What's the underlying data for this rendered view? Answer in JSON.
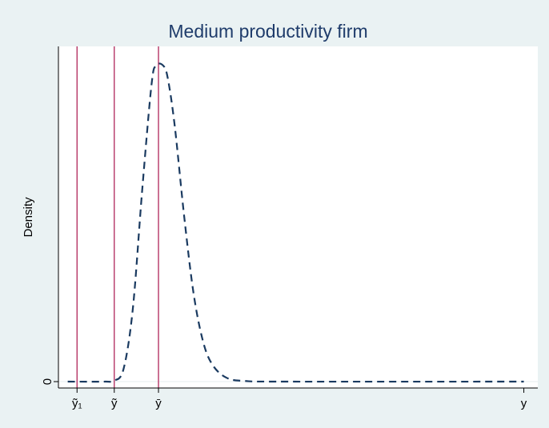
{
  "chart_data": {
    "type": "line",
    "title": "Medium productivity firm",
    "xlabel": "",
    "ylabel": "Density",
    "x_tick_labels": [
      {
        "label": "ỹ₁",
        "x": 0.04
      },
      {
        "label": "ỹ",
        "x": 0.12
      },
      {
        "label": "ȳ",
        "x": 0.215
      },
      {
        "label": "y",
        "x": 1.0
      }
    ],
    "y_tick_labels": [
      {
        "label": "0",
        "y": 0
      }
    ],
    "xlim": [
      0.0,
      1.03
    ],
    "ylim": [
      -0.02,
      1.05
    ],
    "grid": false,
    "legend": "none",
    "vlines": [
      {
        "x": 0.04,
        "color": "#b0255a"
      },
      {
        "x": 0.12,
        "color": "#b0255a"
      },
      {
        "x": 0.215,
        "color": "#b0255a"
      }
    ],
    "series": [
      {
        "style": "dashed",
        "color": "#1a3a60",
        "x": [
          0.02,
          0.1,
          0.12,
          0.14,
          0.16,
          0.18,
          0.2,
          0.21,
          0.225,
          0.235,
          0.25,
          0.27,
          0.29,
          0.31,
          0.33,
          0.36,
          0.4,
          0.5,
          1.0
        ],
        "y": [
          0.0,
          0.0,
          0.003,
          0.04,
          0.23,
          0.6,
          0.93,
          0.99,
          0.99,
          0.95,
          0.8,
          0.52,
          0.28,
          0.13,
          0.055,
          0.013,
          0.002,
          0.0,
          0.0
        ]
      }
    ]
  },
  "colors": {
    "background": "#eaf2f3",
    "plot_background": "#ffffff",
    "title": "#1f3c6b",
    "axis": "#000000",
    "vline": "#b0255a",
    "curve": "#1a3a60"
  }
}
